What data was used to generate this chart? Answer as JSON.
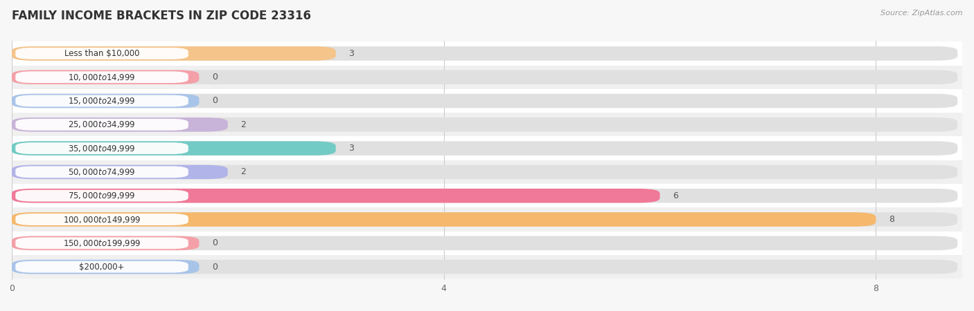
{
  "title": "FAMILY INCOME BRACKETS IN ZIP CODE 23316",
  "source": "Source: ZipAtlas.com",
  "categories": [
    "Less than $10,000",
    "$10,000 to $14,999",
    "$15,000 to $24,999",
    "$25,000 to $34,999",
    "$35,000 to $49,999",
    "$50,000 to $74,999",
    "$75,000 to $99,999",
    "$100,000 to $149,999",
    "$150,000 to $199,999",
    "$200,000+"
  ],
  "values": [
    3,
    0,
    0,
    2,
    3,
    2,
    6,
    8,
    0,
    0
  ],
  "bar_colors": [
    "#F5C48A",
    "#F4A0A8",
    "#A8C4E8",
    "#C8B4D8",
    "#72CBC4",
    "#B0B4E8",
    "#F07898",
    "#F5B86C",
    "#F4A0A8",
    "#A8C4E8"
  ],
  "xlim_max": 8.8,
  "xticks": [
    0,
    4,
    8
  ],
  "background_color": "#f7f7f7",
  "row_colors": [
    "#ffffff",
    "#f0f0f0"
  ],
  "bar_bg_color": "#e0e0e0",
  "title_fontsize": 12,
  "label_fontsize": 8.5,
  "value_fontsize": 9
}
